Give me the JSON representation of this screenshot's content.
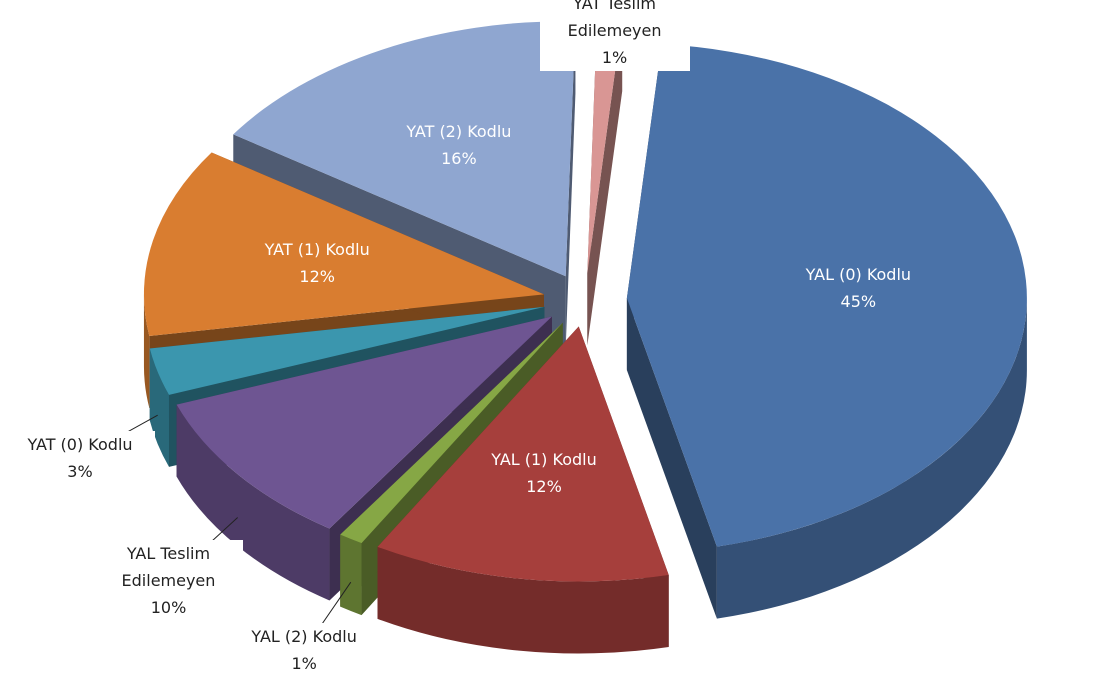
{
  "chart_data": {
    "type": "pie",
    "categories": [
      "YAL (0) Kodlu",
      "YAL (1) Kodlu",
      "YAL (2) Kodlu",
      "YAL Teslim Edilemeyen",
      "YAT (0) Kodlu",
      "YAT (1) Kodlu",
      "YAT (2) Kodlu",
      "YAT Teslim Edilemeyen"
    ],
    "values": [
      45,
      12,
      1,
      10,
      3,
      12,
      16,
      1
    ],
    "value_labels": [
      "45%",
      "12%",
      "1%",
      "10%",
      "3%",
      "12%",
      "16%",
      "1%"
    ],
    "colors": [
      "#4a72a8",
      "#a63f3c",
      "#86a745",
      "#6e5592",
      "#3b96ae",
      "#d97d30",
      "#8fa6d0",
      "#d99694"
    ]
  }
}
